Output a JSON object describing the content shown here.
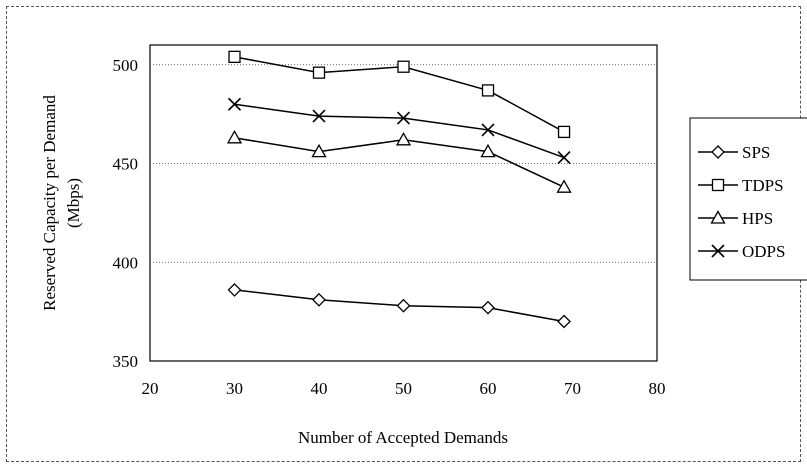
{
  "chart_data": {
    "type": "line",
    "title": "",
    "xlabel": "Number of Accepted Demands",
    "ylabel_lines": [
      "Reserved Capacity per Demand",
      "(Mbps)"
    ],
    "xlim": [
      20,
      80
    ],
    "ylim": [
      350,
      510
    ],
    "xticks": [
      "20",
      "30",
      "40",
      "50",
      "60",
      "70",
      "80"
    ],
    "yticks": [
      "350",
      "400",
      "450",
      "500"
    ],
    "grid": "horizontal dotted",
    "legend_position": "right",
    "series": [
      {
        "name": "SPS",
        "marker": "diamond",
        "x": [
          30,
          40,
          50,
          60,
          69
        ],
        "y": [
          386,
          381,
          378,
          377,
          370
        ]
      },
      {
        "name": "TDPS",
        "marker": "square",
        "x": [
          30,
          40,
          50,
          60,
          69
        ],
        "y": [
          504,
          496,
          499,
          487,
          466
        ]
      },
      {
        "name": "HPS",
        "marker": "triangle",
        "x": [
          30,
          40,
          50,
          60,
          69
        ],
        "y": [
          463,
          456,
          462,
          456,
          438
        ]
      },
      {
        "name": "ODPS",
        "marker": "x",
        "x": [
          30,
          40,
          50,
          60,
          69
        ],
        "y": [
          480,
          474,
          473,
          467,
          453
        ]
      }
    ]
  }
}
